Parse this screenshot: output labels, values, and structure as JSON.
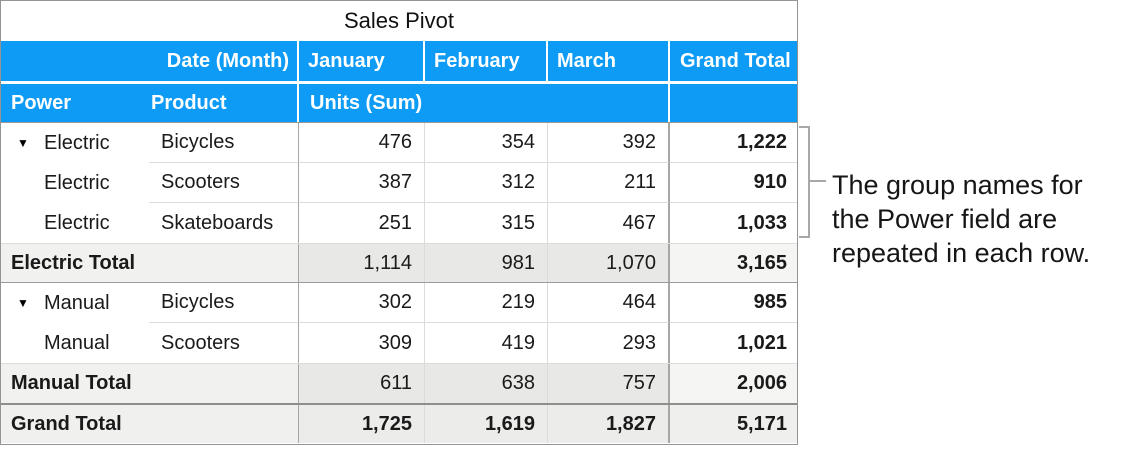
{
  "title": "Sales Pivot",
  "colors": {
    "header_blue": "#0d9bf5",
    "header_text": "#ffffff",
    "subtotal_bg": "#e8e8e6",
    "grand_row_bg": "#ececea",
    "bracket_gray": "#a8a8a8",
    "border_gray": "#949492"
  },
  "header": {
    "date_month": "Date (Month)",
    "power": "Power",
    "product": "Product",
    "units": "Units (Sum)",
    "months": {
      "jan": "January",
      "feb": "February",
      "mar": "March"
    },
    "grand": "Grand Total"
  },
  "rows": [
    {
      "type": "data",
      "power": "Electric",
      "product": "Bicycles",
      "jan": "476",
      "feb": "354",
      "mar": "392",
      "total": "1,222"
    },
    {
      "type": "data",
      "power": "Electric",
      "product": "Scooters",
      "jan": "387",
      "feb": "312",
      "mar": "211",
      "total": "910"
    },
    {
      "type": "data",
      "power": "Electric",
      "product": "Skateboards",
      "jan": "251",
      "feb": "315",
      "mar": "467",
      "total": "1,033"
    },
    {
      "type": "subtotal",
      "label": "Electric Total",
      "jan": "1,114",
      "feb": "981",
      "mar": "1,070",
      "total": "3,165"
    },
    {
      "type": "data",
      "power": "Manual",
      "product": "Bicycles",
      "jan": "302",
      "feb": "219",
      "mar": "464",
      "total": "985"
    },
    {
      "type": "data",
      "power": "Manual",
      "product": "Scooters",
      "jan": "309",
      "feb": "419",
      "mar": "293",
      "total": "1,021"
    },
    {
      "type": "subtotal",
      "label": "Manual Total",
      "jan": "611",
      "feb": "638",
      "mar": "757",
      "total": "2,006"
    },
    {
      "type": "grandtotal",
      "label": "Grand Total",
      "jan": "1,725",
      "feb": "1,619",
      "mar": "1,827",
      "total": "5,171"
    }
  ],
  "annotation": {
    "text": "The group names for the Power field are repeated in each row.",
    "lines": [
      "The group names for",
      "the Power field are",
      "repeated in each row."
    ]
  }
}
